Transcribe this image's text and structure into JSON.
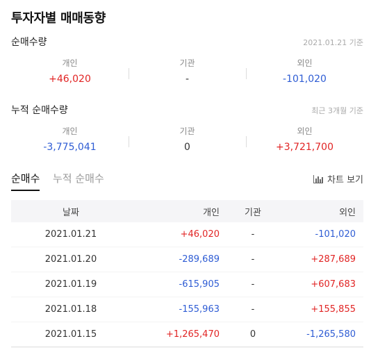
{
  "page": {
    "title": "투자자별 매매동향"
  },
  "net_volume": {
    "title": "순매수량",
    "note": "2021.01.21 기준",
    "stats": [
      {
        "label": "개인",
        "value": "+46,020",
        "dir": "up"
      },
      {
        "label": "기관",
        "value": "-",
        "dir": "flat"
      },
      {
        "label": "외인",
        "value": "-101,020",
        "dir": "down"
      }
    ]
  },
  "cumulative": {
    "title": "누적 순매수량",
    "note": "최근 3개월 기준",
    "stats": [
      {
        "label": "개인",
        "value": "-3,775,041",
        "dir": "down"
      },
      {
        "label": "기관",
        "value": "0",
        "dir": "flat"
      },
      {
        "label": "외인",
        "value": "+3,721,700",
        "dir": "up"
      }
    ]
  },
  "tabs": [
    {
      "label": "순매수",
      "active": true
    },
    {
      "label": "누적 순매수",
      "active": false
    }
  ],
  "chart_button": {
    "label": "차트 보기",
    "icon": "bar-chart-icon"
  },
  "table": {
    "headers": {
      "date": "날짜",
      "individual": "개인",
      "institution": "기관",
      "foreign": "외인"
    },
    "rows": [
      {
        "date": "2021.01.21",
        "individual": "+46,020",
        "institution": "-",
        "foreign": "-101,020"
      },
      {
        "date": "2021.01.20",
        "individual": "-289,689",
        "institution": "-",
        "foreign": "+287,689"
      },
      {
        "date": "2021.01.19",
        "individual": "-615,905",
        "institution": "-",
        "foreign": "+607,683"
      },
      {
        "date": "2021.01.18",
        "individual": "-155,963",
        "institution": "-",
        "foreign": "+155,855"
      },
      {
        "date": "2021.01.15",
        "individual": "+1,265,470",
        "institution": "0",
        "foreign": "-1,265,580"
      }
    ]
  },
  "colors": {
    "up": "#e12424",
    "down": "#2e5cd4",
    "neutral": "#333333"
  }
}
